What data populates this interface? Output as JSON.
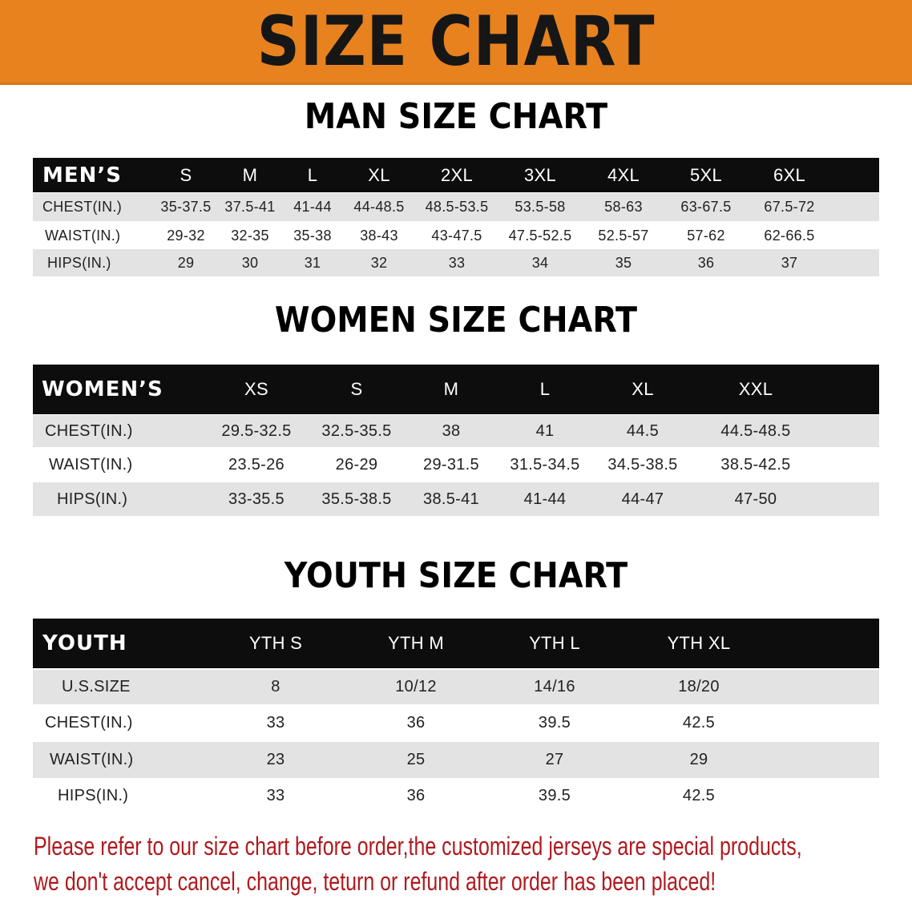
{
  "title": "SIZE CHART",
  "colors": {
    "banner": "#e8821e",
    "header_bg": "#0d0d0d",
    "row_gray": "#e3e3e3",
    "note": "#b01a1e"
  },
  "men": {
    "section_title": "MAN SIZE CHART",
    "header": "MEN’S",
    "sizes": [
      "S",
      "M",
      "L",
      "XL",
      "2XL",
      "3XL",
      "4XL",
      "5XL",
      "6XL"
    ],
    "rows": [
      {
        "label": "CHEST(IN.)",
        "values": [
          "35-37.5",
          "37.5-41",
          "41-44",
          "44-48.5",
          "48.5-53.5",
          "53.5-58",
          "58-63",
          "63-67.5",
          "67.5-72"
        ]
      },
      {
        "label": "WAIST(IN.)",
        "values": [
          "29-32",
          "32-35",
          "35-38",
          "38-43",
          "43-47.5",
          "47.5-52.5",
          "52.5-57",
          "57-62",
          "62-66.5"
        ]
      },
      {
        "label": "HIPS(IN.)",
        "values": [
          "29",
          "30",
          "31",
          "32",
          "33",
          "34",
          "35",
          "36",
          "37"
        ]
      }
    ]
  },
  "women": {
    "section_title": "WOMEN SIZE CHART",
    "header": "WOMEN’S",
    "sizes": [
      "XS",
      "S",
      "M",
      "L",
      "XL",
      "XXL"
    ],
    "rows": [
      {
        "label": "CHEST(IN.)",
        "values": [
          "29.5-32.5",
          "32.5-35.5",
          "38",
          "41",
          "44.5",
          "44.5-48.5"
        ]
      },
      {
        "label": "WAIST(IN.)",
        "values": [
          "23.5-26",
          "26-29",
          "29-31.5",
          "31.5-34.5",
          "34.5-38.5",
          "38.5-42.5"
        ]
      },
      {
        "label": "HIPS(IN.)",
        "values": [
          "33-35.5",
          "35.5-38.5",
          "38.5-41",
          "41-44",
          "44-47",
          "47-50"
        ]
      }
    ]
  },
  "youth": {
    "section_title": "YOUTH SIZE CHART",
    "header": "YOUTH",
    "sizes": [
      "YTH S",
      "YTH M",
      "YTH L",
      "YTH XL"
    ],
    "rows": [
      {
        "label": "U.S.SIZE",
        "values": [
          "8",
          "10/12",
          "14/16",
          "18/20"
        ]
      },
      {
        "label": "CHEST(IN.)",
        "values": [
          "33",
          "36",
          "39.5",
          "42.5"
        ]
      },
      {
        "label": "WAIST(IN.)",
        "values": [
          "23",
          "25",
          "27",
          "29"
        ]
      },
      {
        "label": "HIPS(IN.)",
        "values": [
          "33",
          "36",
          "39.5",
          "42.5"
        ]
      }
    ]
  },
  "note": {
    "line1": "Please refer to our size chart before order,the customized jerseys are special products,",
    "line2": "we don't accept cancel, change, teturn or refund after order has been placed!"
  }
}
